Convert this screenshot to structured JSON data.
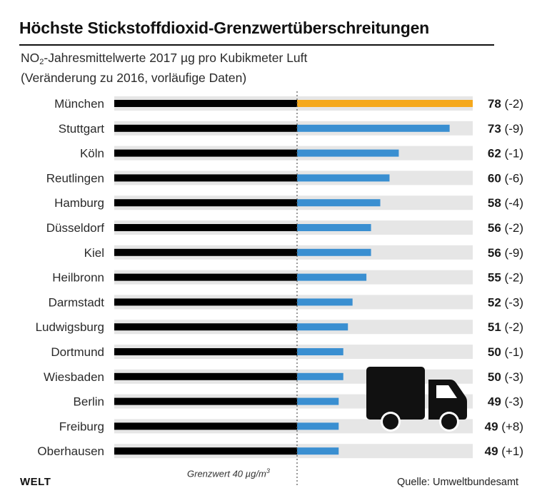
{
  "header": {
    "title": "Höchste Stickstoffdioxid-Grenzwertüberschreitungen",
    "subtitle_pre": "NO",
    "subtitle_sub": "2",
    "subtitle_post": "-Jahresmittelwerte 2017 µg pro Kubikmeter Luft",
    "subtitle_line2": "(Veränderung zu 2016, vorläufige Daten)"
  },
  "footer": {
    "logo": "WELT",
    "source": "Quelle: Umweltbundesamt",
    "threshold_label": "Grenzwert 40 µg/m",
    "threshold_sup": "3"
  },
  "colors": {
    "below_limit": "#000000",
    "above_limit": "#3a8fd1",
    "highlight": "#f5a81c",
    "track": "#e6e6e6",
    "icon": "#111111"
  },
  "icon": "truck-icon",
  "chart_data": {
    "type": "bar",
    "orientation": "horizontal",
    "threshold": 40,
    "xlim": [
      0,
      78
    ],
    "categories": [
      "München",
      "Stuttgart",
      "Köln",
      "Reutlingen",
      "Hamburg",
      "Düsseldorf",
      "Kiel",
      "Heilbronn",
      "Darmstadt",
      "Ludwigsburg",
      "Dortmund",
      "Wiesbaden",
      "Berlin",
      "Freiburg",
      "Oberhausen"
    ],
    "values": [
      78,
      73,
      62,
      60,
      58,
      56,
      56,
      55,
      52,
      51,
      50,
      50,
      49,
      49,
      49
    ],
    "changes": [
      "(-2)",
      "(-9)",
      "(-1)",
      "(-6)",
      "(-4)",
      "(-2)",
      "(-9)",
      "(-2)",
      "(-3)",
      "(-2)",
      "(-1)",
      "(-3)",
      "(-3)",
      "(+8)",
      "(+1)"
    ],
    "highlighted_category": "München"
  }
}
